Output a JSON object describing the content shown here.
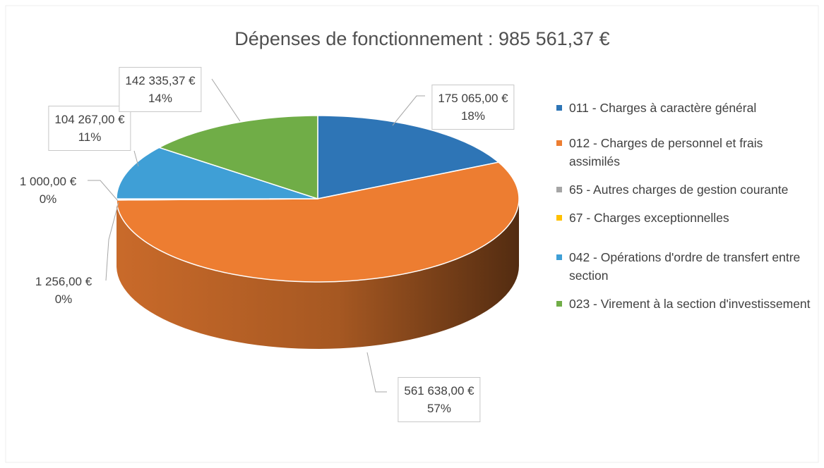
{
  "chart_data": {
    "type": "pie",
    "title": "Dépenses de fonctionnement : 985 561,37 €",
    "categories": [
      "011 - Charges à caractère général",
      "012 - Charges de personnel et frais assimilés",
      "65 - Autres charges de gestion courante",
      "67 - Charges exceptionnelles",
      "042 - Opérations d'ordre de transfert entre section",
      "023 - Virement à la section d'investissement"
    ],
    "values": [
      175065,
      561638,
      1256,
      1000,
      104267,
      142335.37
    ],
    "value_labels": [
      "175 065,00 €",
      "561 638,00 €",
      "1 256,00 €",
      "1 000,00 €",
      "104 267,00 €",
      "142 335,37 €"
    ],
    "percent_labels": [
      "18%",
      "57%",
      "0%",
      "0%",
      "11%",
      "14%"
    ],
    "colors": [
      "#2e75b6",
      "#ed7d31",
      "#a5a5a5",
      "#ffc000",
      "#3f9fd6",
      "#70ad47"
    ],
    "legend": "right"
  }
}
